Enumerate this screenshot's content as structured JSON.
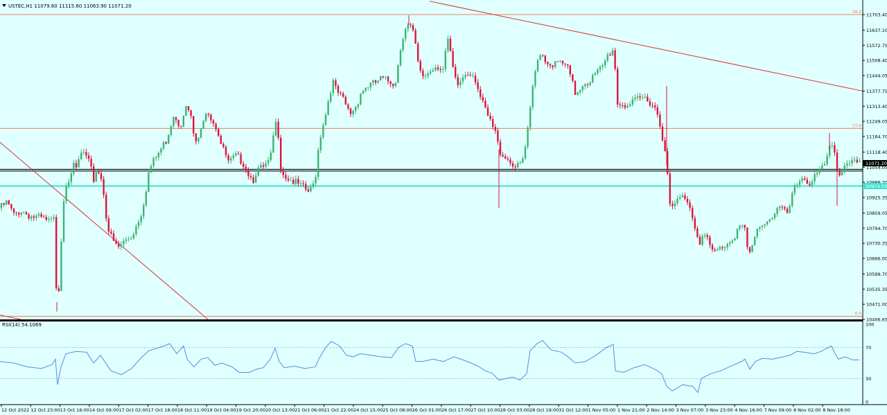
{
  "chart_data": {
    "type": "candlestick",
    "symbol_info": "USTEC,H1  11079.60 11115.60 11063.90 11071.20",
    "colors": {
      "background": "#e0ffff",
      "bull": "#3cb371",
      "bear": "#dc143c",
      "trendline": "#e03030",
      "fibo": "#f08060",
      "support": "#40e0d0",
      "rsi": "#4f8fdf",
      "text": "#000000"
    },
    "price_axis": {
      "min": 10406.65,
      "max": 11730,
      "ticks": [
        "11703.40",
        "11637.10",
        "11572.75",
        "11508.40",
        "11444.05",
        "11377.75",
        "11313.40",
        "11249.05",
        "11184.70",
        "11118.40",
        "11054.05",
        "10989.70",
        "10925.35",
        "10859.05",
        "10794.70",
        "10730.35",
        "10666.00",
        "10599.70",
        "10535.35",
        "10471.00",
        "10406.65"
      ]
    },
    "current_price": {
      "label": "11071.20",
      "value": 11071.2
    },
    "support_level": {
      "label": "10974.03",
      "value": 10974.03
    },
    "black_lines": [
      11045,
      11038
    ],
    "fibonacci": [
      {
        "label": "38.2",
        "value": 11703.4
      },
      {
        "label": "23.6",
        "value": 11219
      },
      {
        "label": "0.0",
        "value": 10420
      }
    ],
    "trendlines": [
      {
        "points": [
          [
            620,
            11760
          ],
          [
            1245,
            11378
          ]
        ]
      },
      {
        "points": [
          [
            0,
            11160
          ],
          [
            300,
            10406.65
          ]
        ]
      },
      {
        "points": [
          [
            0,
            10425
          ],
          [
            30,
            10406.65
          ]
        ]
      }
    ],
    "close_points": [
      [
        0,
        10880
      ],
      [
        10,
        10905
      ],
      [
        20,
        10850
      ],
      [
        30,
        10870
      ],
      [
        45,
        10845
      ],
      [
        60,
        10835
      ],
      [
        70,
        10820
      ],
      [
        78,
        10830
      ],
      [
        82,
        10480
      ],
      [
        86,
        10570
      ],
      [
        90,
        10870
      ],
      [
        95,
        10990
      ],
      [
        100,
        11010
      ],
      [
        105,
        11060
      ],
      [
        110,
        11040
      ],
      [
        115,
        11100
      ],
      [
        120,
        11120
      ],
      [
        125,
        11090
      ],
      [
        130,
        11060
      ],
      [
        135,
        11000
      ],
      [
        140,
        11050
      ],
      [
        145,
        11020
      ],
      [
        150,
        10940
      ],
      [
        155,
        10800
      ],
      [
        160,
        10760
      ],
      [
        165,
        10730
      ],
      [
        170,
        10710
      ],
      [
        180,
        10740
      ],
      [
        190,
        10760
      ],
      [
        200,
        10830
      ],
      [
        205,
        10870
      ],
      [
        210,
        10950
      ],
      [
        215,
        11040
      ],
      [
        220,
        11070
      ],
      [
        230,
        11120
      ],
      [
        240,
        11170
      ],
      [
        245,
        11220
      ],
      [
        250,
        11280
      ],
      [
        255,
        11260
      ],
      [
        260,
        11230
      ],
      [
        265,
        11290
      ],
      [
        270,
        11310
      ],
      [
        275,
        11270
      ],
      [
        280,
        11180
      ],
      [
        285,
        11150
      ],
      [
        290,
        11210
      ],
      [
        295,
        11290
      ],
      [
        300,
        11300
      ],
      [
        305,
        11260
      ],
      [
        310,
        11240
      ],
      [
        315,
        11200
      ],
      [
        320,
        11140
      ],
      [
        325,
        11110
      ],
      [
        330,
        11070
      ],
      [
        340,
        11100
      ],
      [
        350,
        11080
      ],
      [
        360,
        11020
      ],
      [
        365,
        11000
      ],
      [
        370,
        11040
      ],
      [
        380,
        11050
      ],
      [
        390,
        11080
      ],
      [
        395,
        11200
      ],
      [
        400,
        11260
      ],
      [
        405,
        11060
      ],
      [
        410,
        11020
      ],
      [
        420,
        11000
      ],
      [
        430,
        10980
      ],
      [
        440,
        10960
      ],
      [
        445,
        10950
      ],
      [
        450,
        10960
      ],
      [
        455,
        11010
      ],
      [
        460,
        11150
      ],
      [
        465,
        11230
      ],
      [
        470,
        11280
      ],
      [
        475,
        11360
      ],
      [
        480,
        11420
      ],
      [
        485,
        11380
      ],
      [
        490,
        11360
      ],
      [
        495,
        11340
      ],
      [
        500,
        11310
      ],
      [
        505,
        11280
      ],
      [
        510,
        11300
      ],
      [
        515,
        11320
      ],
      [
        520,
        11370
      ],
      [
        530,
        11400
      ],
      [
        540,
        11410
      ],
      [
        550,
        11430
      ],
      [
        560,
        11420
      ],
      [
        570,
        11410
      ],
      [
        575,
        11500
      ],
      [
        580,
        11600
      ],
      [
        585,
        11650
      ],
      [
        590,
        11660
      ],
      [
        595,
        11640
      ],
      [
        600,
        11560
      ],
      [
        605,
        11460
      ],
      [
        610,
        11440
      ],
      [
        620,
        11460
      ],
      [
        630,
        11490
      ],
      [
        640,
        11470
      ],
      [
        645,
        11600
      ],
      [
        650,
        11540
      ],
      [
        655,
        11440
      ],
      [
        660,
        11400
      ],
      [
        665,
        11420
      ],
      [
        670,
        11450
      ],
      [
        680,
        11460
      ],
      [
        685,
        11440
      ],
      [
        690,
        11390
      ],
      [
        695,
        11330
      ],
      [
        700,
        11300
      ],
      [
        705,
        11260
      ],
      [
        710,
        11230
      ],
      [
        715,
        11200
      ],
      [
        720,
        11130
      ],
      [
        725,
        11110
      ],
      [
        730,
        11100
      ],
      [
        735,
        11080
      ],
      [
        740,
        11070
      ],
      [
        745,
        11050
      ],
      [
        750,
        11060
      ],
      [
        755,
        11090
      ],
      [
        760,
        11170
      ],
      [
        765,
        11290
      ],
      [
        770,
        11420
      ],
      [
        775,
        11500
      ],
      [
        780,
        11550
      ],
      [
        785,
        11520
      ],
      [
        790,
        11500
      ],
      [
        800,
        11490
      ],
      [
        810,
        11500
      ],
      [
        820,
        11470
      ],
      [
        825,
        11420
      ],
      [
        830,
        11370
      ],
      [
        835,
        11380
      ],
      [
        840,
        11410
      ],
      [
        850,
        11420
      ],
      [
        860,
        11450
      ],
      [
        870,
        11480
      ],
      [
        875,
        11520
      ],
      [
        880,
        11540
      ],
      [
        885,
        11560
      ],
      [
        888,
        11460
      ],
      [
        890,
        11330
      ],
      [
        900,
        11320
      ],
      [
        910,
        11320
      ],
      [
        920,
        11340
      ],
      [
        930,
        11350
      ],
      [
        940,
        11330
      ],
      [
        945,
        11310
      ],
      [
        950,
        11270
      ],
      [
        955,
        11200
      ],
      [
        960,
        11130
      ],
      [
        963,
        11030
      ],
      [
        965,
        10890
      ],
      [
        970,
        10880
      ],
      [
        975,
        10900
      ],
      [
        980,
        10920
      ],
      [
        990,
        10930
      ],
      [
        995,
        10890
      ],
      [
        1000,
        10840
      ],
      [
        1005,
        10780
      ],
      [
        1010,
        10740
      ],
      [
        1015,
        10760
      ],
      [
        1020,
        10760
      ],
      [
        1025,
        10700
      ],
      [
        1030,
        10690
      ],
      [
        1035,
        10700
      ],
      [
        1040,
        10710
      ],
      [
        1050,
        10730
      ],
      [
        1060,
        10760
      ],
      [
        1065,
        10800
      ],
      [
        1070,
        10810
      ],
      [
        1075,
        10780
      ],
      [
        1080,
        10680
      ],
      [
        1085,
        10700
      ],
      [
        1090,
        10760
      ],
      [
        1095,
        10800
      ],
      [
        1100,
        10820
      ],
      [
        1110,
        10830
      ],
      [
        1115,
        10850
      ],
      [
        1120,
        10870
      ],
      [
        1125,
        10880
      ],
      [
        1130,
        10870
      ],
      [
        1135,
        10850
      ],
      [
        1140,
        10890
      ],
      [
        1145,
        10950
      ],
      [
        1150,
        10980
      ],
      [
        1155,
        11000
      ],
      [
        1160,
        11020
      ],
      [
        1165,
        10990
      ],
      [
        1170,
        10990
      ],
      [
        1175,
        11010
      ],
      [
        1180,
        11020
      ],
      [
        1185,
        11040
      ],
      [
        1190,
        11060
      ],
      [
        1195,
        11100
      ],
      [
        1200,
        11170
      ],
      [
        1205,
        11110
      ],
      [
        1210,
        11010
      ],
      [
        1215,
        11040
      ],
      [
        1220,
        11070
      ],
      [
        1230,
        11080
      ],
      [
        1235,
        11065
      ],
      [
        1240,
        11071
      ]
    ],
    "wick_extremes": {
      "82": 10440,
      "720": 10880,
      "962": 11400,
      "1208": 10890,
      "1197": 11200,
      "590": 11700
    },
    "time_axis": {
      "labels": [
        "12 Oct 2022",
        "12 Oct 23:00",
        "13 Oct 16:00",
        "14 Oct 09:00",
        "17 Oct 02:00",
        "17 Oct 18:00",
        "18 Oct 11:00",
        "19 Oct 04:00",
        "19 Oct 20:00",
        "20 Oct 13:00",
        "21 Oct 06:00",
        "21 Oct 22:00",
        "24 Oct 15:00",
        "25 Oct 08:00",
        "26 Oct 01:00",
        "26 Oct 17:00",
        "27 Oct 10:00",
        "28 Oct 03:00",
        "28 Oct 19:00",
        "31 Oct 12:00",
        "1 Nov 05:00",
        "1 Nov 21:00",
        "2 Nov 14:00",
        "3 Nov 07:00",
        "3 Nov 23:00",
        "4 Nov 16:00",
        "7 Nov 09:00",
        "8 Nov 02:00",
        "8 Nov 18:00"
      ]
    },
    "rsi": {
      "label": "RSI(14) 54.1069",
      "min": 0,
      "max": 100,
      "ticks": [
        "100",
        "70",
        "30",
        "0"
      ],
      "levels": [
        70,
        30
      ],
      "points": [
        [
          0,
          52
        ],
        [
          20,
          50
        ],
        [
          40,
          45
        ],
        [
          60,
          43
        ],
        [
          75,
          48
        ],
        [
          80,
          55
        ],
        [
          83,
          22
        ],
        [
          88,
          45
        ],
        [
          95,
          62
        ],
        [
          110,
          65
        ],
        [
          125,
          64
        ],
        [
          135,
          50
        ],
        [
          145,
          60
        ],
        [
          160,
          40
        ],
        [
          175,
          35
        ],
        [
          190,
          43
        ],
        [
          205,
          58
        ],
        [
          215,
          66
        ],
        [
          230,
          70
        ],
        [
          245,
          75
        ],
        [
          255,
          62
        ],
        [
          265,
          72
        ],
        [
          270,
          55
        ],
        [
          280,
          45
        ],
        [
          290,
          55
        ],
        [
          300,
          57
        ],
        [
          310,
          47
        ],
        [
          320,
          50
        ],
        [
          335,
          45
        ],
        [
          345,
          38
        ],
        [
          360,
          38
        ],
        [
          370,
          42
        ],
        [
          380,
          44
        ],
        [
          390,
          55
        ],
        [
          397,
          69
        ],
        [
          403,
          52
        ],
        [
          410,
          44
        ],
        [
          425,
          46
        ],
        [
          440,
          43
        ],
        [
          455,
          45
        ],
        [
          460,
          55
        ],
        [
          470,
          70
        ],
        [
          478,
          78
        ],
        [
          490,
          72
        ],
        [
          500,
          60
        ],
        [
          510,
          58
        ],
        [
          520,
          62
        ],
        [
          535,
          60
        ],
        [
          550,
          58
        ],
        [
          565,
          57
        ],
        [
          575,
          70
        ],
        [
          585,
          75
        ],
        [
          595,
          72
        ],
        [
          600,
          52
        ],
        [
          610,
          52
        ],
        [
          625,
          55
        ],
        [
          640,
          52
        ],
        [
          655,
          58
        ],
        [
          665,
          55
        ],
        [
          680,
          50
        ],
        [
          690,
          46
        ],
        [
          700,
          40
        ],
        [
          710,
          37
        ],
        [
          720,
          28
        ],
        [
          730,
          30
        ],
        [
          740,
          32
        ],
        [
          750,
          28
        ],
        [
          760,
          36
        ],
        [
          765,
          66
        ],
        [
          775,
          75
        ],
        [
          783,
          79
        ],
        [
          795,
          67
        ],
        [
          810,
          64
        ],
        [
          820,
          58
        ],
        [
          830,
          50
        ],
        [
          845,
          52
        ],
        [
          860,
          60
        ],
        [
          875,
          70
        ],
        [
          885,
          74
        ],
        [
          888,
          40
        ],
        [
          900,
          38
        ],
        [
          915,
          44
        ],
        [
          930,
          48
        ],
        [
          945,
          42
        ],
        [
          955,
          36
        ],
        [
          962,
          20
        ],
        [
          970,
          14
        ],
        [
          985,
          22
        ],
        [
          1000,
          20
        ],
        [
          1007,
          12
        ],
        [
          1012,
          30
        ],
        [
          1025,
          36
        ],
        [
          1040,
          40
        ],
        [
          1055,
          46
        ],
        [
          1070,
          52
        ],
        [
          1075,
          55
        ],
        [
          1082,
          42
        ],
        [
          1090,
          52
        ],
        [
          1100,
          56
        ],
        [
          1115,
          55
        ],
        [
          1130,
          58
        ],
        [
          1140,
          60
        ],
        [
          1150,
          65
        ],
        [
          1160,
          64
        ],
        [
          1175,
          62
        ],
        [
          1185,
          65
        ],
        [
          1195,
          70
        ],
        [
          1200,
          72
        ],
        [
          1205,
          62
        ],
        [
          1210,
          55
        ],
        [
          1220,
          58
        ],
        [
          1230,
          54
        ],
        [
          1240,
          54
        ]
      ]
    }
  }
}
